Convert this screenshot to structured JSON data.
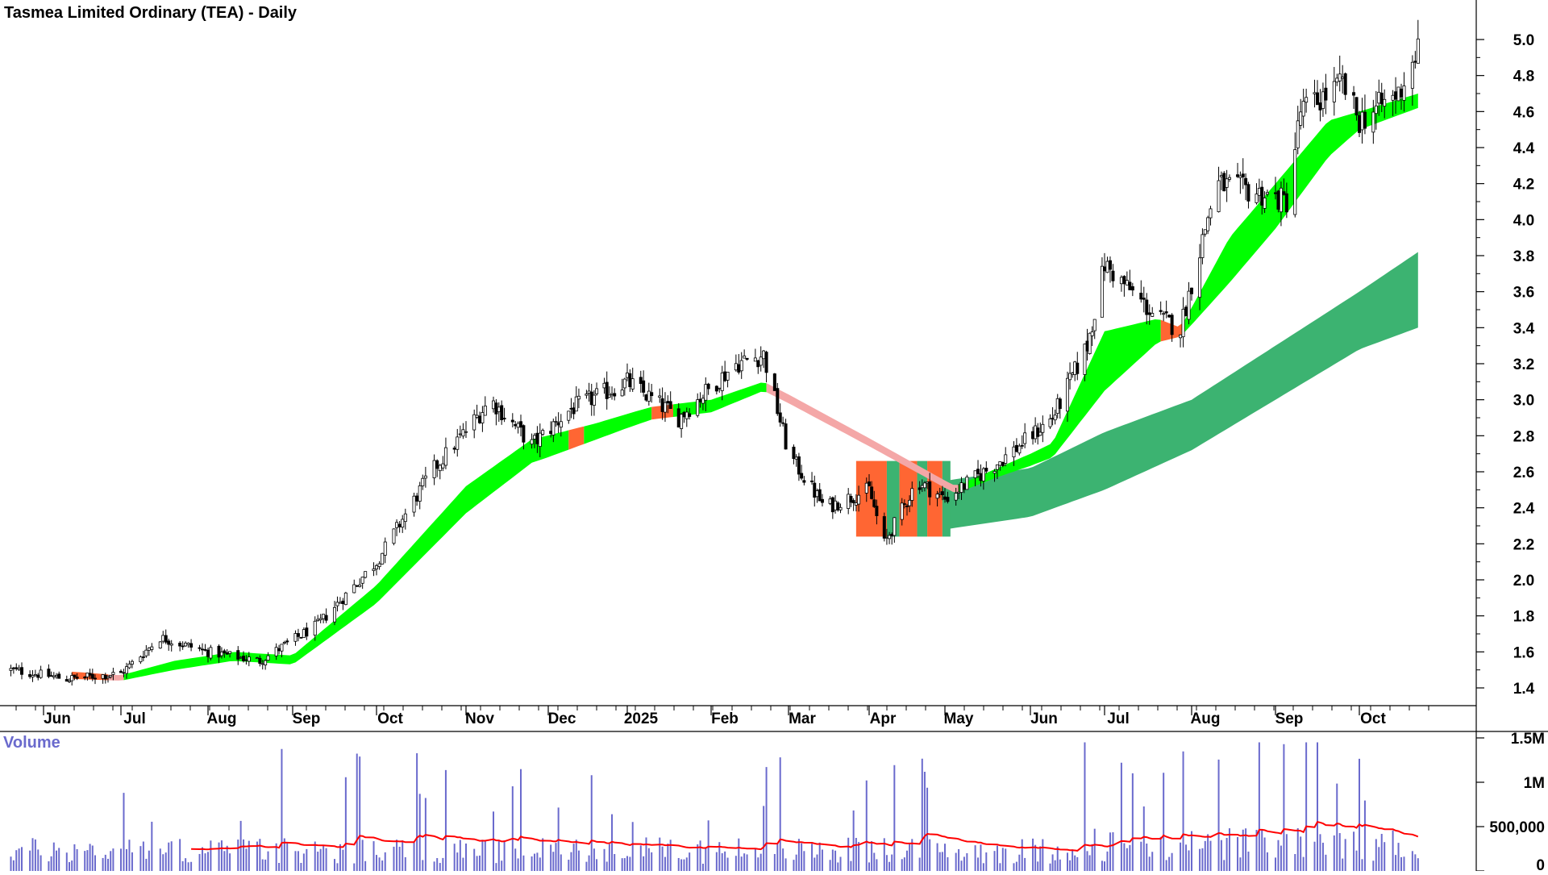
{
  "chart_data": [
    {
      "type": "candlestick",
      "title": "Tasmea Limited Ordinary (TEA) - Daily",
      "xlabel": "",
      "ylabel": "",
      "ylim": [
        1.3,
        5.1
      ],
      "grid": false,
      "y_ticks": [
        "1.4",
        "1.6",
        "1.8",
        "2.0",
        "2.2",
        "2.4",
        "2.6",
        "2.8",
        "3.0",
        "3.2",
        "3.4",
        "3.6",
        "3.8",
        "4.0",
        "4.2",
        "4.4",
        "4.6",
        "4.8",
        "5.0"
      ],
      "x_ticks": [
        "Jun",
        "Jul",
        "Aug",
        "Sep",
        "Oct",
        "Nov",
        "Dec",
        "2025",
        "Feb",
        "Mar",
        "Apr",
        "May",
        "Jun",
        "Jul",
        "Aug",
        "Sep",
        "Oct"
      ],
      "price_keypoints": {
        "x": [
          "2024-05-20",
          "2024-06-10",
          "2024-07-01",
          "2024-07-15",
          "2024-08-01",
          "2024-08-20",
          "2024-09-10",
          "2024-10-01",
          "2024-10-20",
          "2024-11-10",
          "2024-11-25",
          "2024-12-10",
          "2025-01-01",
          "2025-01-20",
          "2025-02-10",
          "2025-02-20",
          "2025-03-01",
          "2025-03-15",
          "2025-04-01",
          "2025-04-07",
          "2025-04-20",
          "2025-05-01",
          "2025-05-20",
          "2025-06-10",
          "2025-06-24",
          "2025-07-01",
          "2025-07-20",
          "2025-07-28",
          "2025-08-10",
          "2025-08-25",
          "2025-09-05",
          "2025-09-10",
          "2025-09-25",
          "2025-10-01",
          "2025-10-15",
          "2025-10-22"
        ],
        "close": [
          1.5,
          1.45,
          1.48,
          1.68,
          1.6,
          1.55,
          1.75,
          2.1,
          2.6,
          3.0,
          2.75,
          2.95,
          3.1,
          2.9,
          3.2,
          3.25,
          2.7,
          2.4,
          2.5,
          2.2,
          2.55,
          2.45,
          2.65,
          2.9,
          3.3,
          3.75,
          3.45,
          3.4,
          4.2,
          4.15,
          4.1,
          4.6,
          4.75,
          4.55,
          4.7,
          4.95
        ]
      },
      "bands": [
        {
          "kind": "short-term moving average ribbon",
          "color": "#00ff00",
          "x": [
            "2024-06-12",
            "2024-07-01",
            "2024-07-20",
            "2024-08-10",
            "2024-09-01",
            "2024-10-01",
            "2024-11-01",
            "2024-11-25",
            "2024-12-20",
            "2025-01-10",
            "2025-02-01",
            "2025-02-20",
            "2025-05-05",
            "2025-05-20",
            "2025-06-10",
            "2025-07-01",
            "2025-07-20",
            "2025-07-28",
            "2025-08-15",
            "2025-09-01",
            "2025-09-20",
            "2025-10-01",
            "2025-10-22"
          ],
          "upper": [
            1.49,
            1.47,
            1.55,
            1.6,
            1.58,
            1.97,
            2.52,
            2.78,
            2.87,
            2.96,
            3.0,
            3.1,
            2.52,
            2.62,
            2.76,
            3.38,
            3.45,
            3.4,
            3.9,
            4.2,
            4.55,
            4.6,
            4.7
          ],
          "lower": [
            1.45,
            1.44,
            1.5,
            1.55,
            1.53,
            1.87,
            2.37,
            2.65,
            2.78,
            2.89,
            2.93,
            3.05,
            2.48,
            2.57,
            2.68,
            3.05,
            3.32,
            3.35,
            3.65,
            3.95,
            4.35,
            4.5,
            4.62
          ]
        },
        {
          "kind": "long-term moving average ribbon",
          "color": "#3cb371",
          "x": [
            "2025-05-01",
            "2025-06-01",
            "2025-07-01",
            "2025-08-01",
            "2025-09-01",
            "2025-10-01",
            "2025-10-22"
          ],
          "upper": [
            2.55,
            2.62,
            2.82,
            3.0,
            3.3,
            3.6,
            3.82
          ],
          "lower": [
            2.28,
            2.35,
            2.5,
            2.72,
            3.0,
            3.28,
            3.4
          ]
        }
      ]
    },
    {
      "type": "bar",
      "title": "Volume",
      "xlabel": "",
      "ylabel": "",
      "ylim": [
        0,
        1500000
      ],
      "y_ticks": [
        "1.5M",
        "1M",
        "500,000",
        "0"
      ],
      "volume_average_color": "#ff0000",
      "volume_bar_color": "#6a6acd"
    }
  ],
  "colors": {
    "candle_body": "#000000",
    "short_ribbon_up": "#00ff00",
    "short_ribbon_down": "#ff6633",
    "short_ribbon_fade": "#f4a7a7",
    "long_ribbon": "#3cb371",
    "volume_label": "#6a6acd"
  }
}
